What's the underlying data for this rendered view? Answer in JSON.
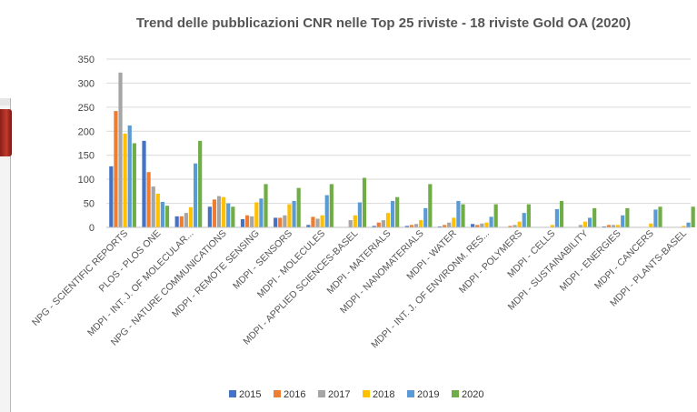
{
  "chart_data": {
    "type": "bar",
    "title": "Trend delle pubblicazioni CNR nelle Top 25 riviste  - 18 riviste Gold OA (2020)",
    "xlabel": "",
    "ylabel": "",
    "ylim": [
      0,
      350
    ],
    "yticks": [
      0,
      50,
      100,
      150,
      200,
      250,
      300,
      350
    ],
    "grid": true,
    "legend_position": "bottom",
    "categories": [
      "NPG - SCIENTIFIC REPORTS",
      "PLOS - PLOS ONE",
      "MDPI - INT. J. OF MOLECULAR...",
      "NPG - NATURE COMMUNICATIONS",
      "MDPI - REMOTE SENSING",
      "MDPI - SENSORS",
      "MDPI - MOLECULES",
      "MDPI - APPLIED SCIENCES-BASEL",
      "MDPI - MATERIALS",
      "MDPI - NANOMATERIALS",
      "MDPI - WATER",
      "MDPI - INT. J. OF ENVIRONM. RES...",
      "MDPI - POLYMERS",
      "MDPI - CELLS",
      "MDPI - SUSTAINABILITY",
      "MDPI - ENERGIES",
      "MDPI - CANCERS",
      "MDPI - PLANTS-BASEL"
    ],
    "series": [
      {
        "name": "2015",
        "color": "#4472c4",
        "values": [
          127,
          180,
          23,
          43,
          17,
          20,
          5,
          0,
          3,
          3,
          2,
          7,
          0,
          0,
          0,
          2,
          0,
          0
        ]
      },
      {
        "name": "2016",
        "color": "#ed7d31",
        "values": [
          242,
          115,
          23,
          58,
          25,
          20,
          22,
          0,
          10,
          5,
          5,
          5,
          3,
          0,
          0,
          5,
          0,
          0
        ]
      },
      {
        "name": "2017",
        "color": "#a5a5a5",
        "values": [
          322,
          85,
          30,
          65,
          23,
          25,
          18,
          15,
          15,
          7,
          10,
          8,
          5,
          0,
          5,
          5,
          0,
          0
        ]
      },
      {
        "name": "2018",
        "color": "#ffc000",
        "values": [
          195,
          70,
          42,
          63,
          52,
          48,
          25,
          25,
          30,
          15,
          20,
          10,
          12,
          5,
          12,
          5,
          8,
          3
        ]
      },
      {
        "name": "2019",
        "color": "#5b9bd5",
        "values": [
          212,
          53,
          133,
          50,
          60,
          55,
          67,
          52,
          55,
          40,
          55,
          22,
          30,
          38,
          20,
          25,
          37,
          10
        ]
      },
      {
        "name": "2020",
        "color": "#70ad47",
        "values": [
          175,
          45,
          180,
          43,
          90,
          82,
          90,
          103,
          63,
          90,
          48,
          48,
          48,
          55,
          40,
          40,
          43,
          43
        ]
      }
    ]
  }
}
